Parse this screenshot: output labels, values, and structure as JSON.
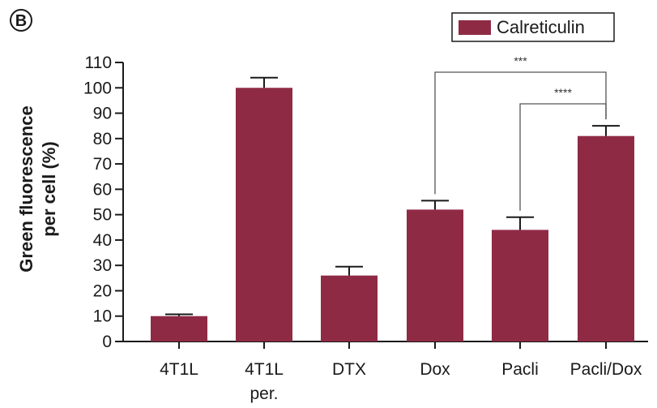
{
  "panel_label": "B",
  "chart_data": {
    "type": "bar",
    "title": "",
    "xlabel": "",
    "ylabel_lines": [
      "Green fluorescence",
      "per cell (%)"
    ],
    "ylim": [
      0,
      110
    ],
    "yticks": [
      0,
      10,
      20,
      30,
      40,
      50,
      60,
      70,
      80,
      90,
      100,
      110
    ],
    "categories": [
      [
        "4T1L"
      ],
      [
        "4T1L",
        "per."
      ],
      [
        "DTX"
      ],
      [
        "Dox"
      ],
      [
        "Pacli"
      ],
      [
        "Pacli/Dox"
      ]
    ],
    "series": [
      {
        "name": "Calreticulin",
        "color": "#8f2a45",
        "values": [
          10,
          100,
          26,
          52,
          44,
          81
        ],
        "errors": [
          0.7,
          4,
          3.5,
          3.5,
          5,
          4
        ]
      }
    ],
    "legend": {
      "position": "top-right",
      "entries": [
        "Calreticulin"
      ]
    },
    "significance": [
      {
        "from_category": 3,
        "to_category": 5,
        "label": "***"
      },
      {
        "from_category": 4,
        "to_category": 5,
        "label": "****"
      }
    ],
    "grid": false
  }
}
